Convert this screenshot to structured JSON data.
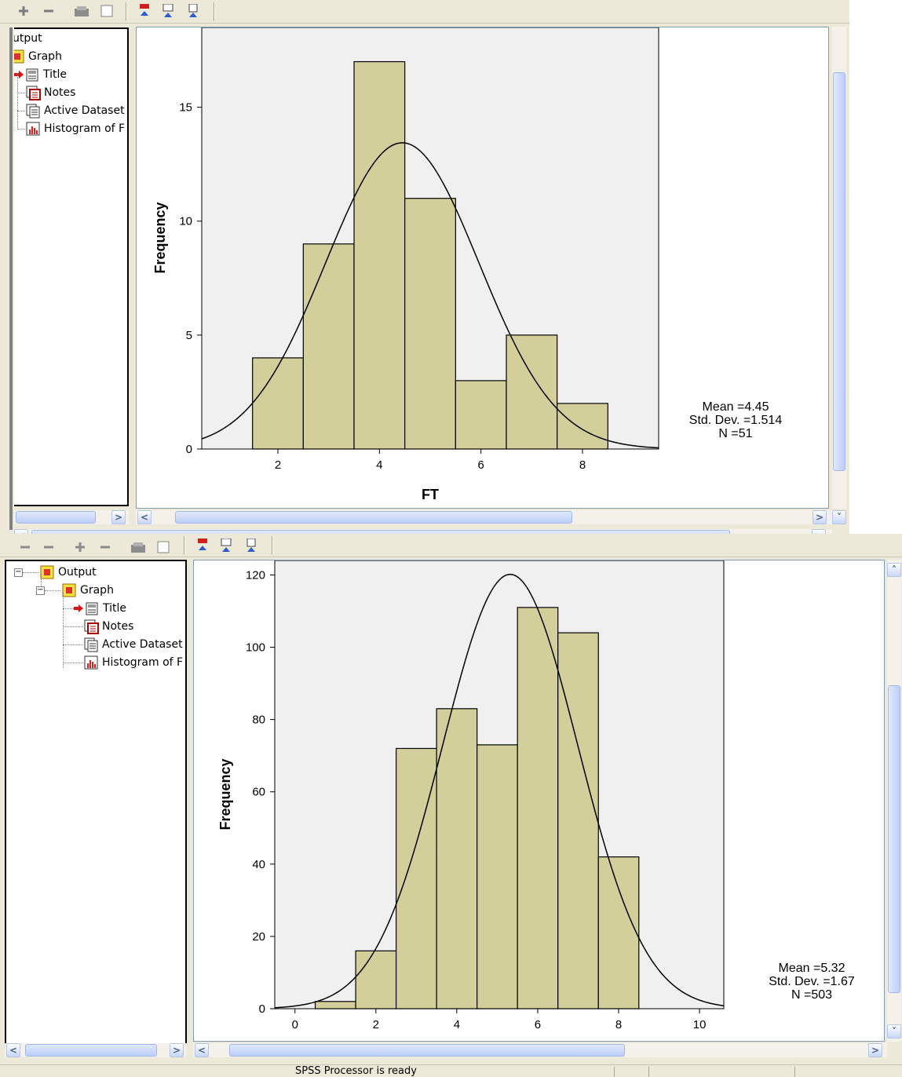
{
  "status": {
    "text": "SPSS Processor is ready"
  },
  "windows": [
    {
      "tree": [
        {
          "label": "utput",
          "icon": "output-folder-icon"
        },
        {
          "label": "Graph",
          "icon": "graph-folder-icon"
        },
        {
          "label": "Title",
          "icon": "title-icon",
          "selected_marker": "arrow-icon"
        },
        {
          "label": "Notes",
          "icon": "notes-icon"
        },
        {
          "label": "Active Dataset",
          "icon": "dataset-icon"
        },
        {
          "label": "Histogram of F",
          "icon": "histogram-icon"
        }
      ],
      "stats": {
        "mean": "Mean =4.45",
        "sd": "Std. Dev. =1.514",
        "n": "N =51"
      }
    },
    {
      "tree": [
        {
          "label": "Output",
          "icon": "output-folder-icon"
        },
        {
          "label": "Graph",
          "icon": "graph-folder-icon"
        },
        {
          "label": "Title",
          "icon": "title-icon",
          "selected_marker": "arrow-icon"
        },
        {
          "label": "Notes",
          "icon": "notes-icon"
        },
        {
          "label": "Active Dataset",
          "icon": "dataset-icon"
        },
        {
          "label": "Histogram of F",
          "icon": "histogram-icon"
        }
      ],
      "stats": {
        "mean": "Mean =5.32",
        "sd": "Std. Dev. =1.67",
        "n": "N =503"
      }
    }
  ],
  "colors": {
    "bar_fill": "#d3cf9b",
    "plot_bg": "#f0f0f0",
    "curve": "#000000"
  },
  "chart_data": [
    {
      "type": "bar",
      "xlabel": "FT",
      "ylabel": "Frequency",
      "bin_width": 1,
      "x": [
        2,
        3,
        4,
        5,
        6,
        7,
        8
      ],
      "values": [
        4,
        9,
        17,
        11,
        3,
        5,
        2
      ],
      "xlim": [
        0.5,
        9.5
      ],
      "ylim": [
        0,
        18.5
      ],
      "xticks": [
        2,
        4,
        6,
        8
      ],
      "yticks": [
        0,
        5,
        10,
        15
      ],
      "normal_curve": {
        "mean": 4.45,
        "sd": 1.514,
        "n": 51
      },
      "grid": false
    },
    {
      "type": "bar",
      "xlabel": "",
      "ylabel": "Frequency",
      "bin_width": 1,
      "x": [
        1,
        2,
        3,
        4,
        5,
        6,
        7,
        8
      ],
      "values": [
        2,
        16,
        72,
        83,
        73,
        111,
        104,
        42
      ],
      "xlim": [
        -0.5,
        10.6
      ],
      "ylim": [
        0,
        124
      ],
      "xticks": [
        0,
        2,
        4,
        6,
        8,
        10
      ],
      "yticks": [
        0,
        20,
        40,
        60,
        80,
        100,
        120
      ],
      "normal_curve": {
        "mean": 5.32,
        "sd": 1.67,
        "n": 503
      },
      "grid": false
    }
  ]
}
